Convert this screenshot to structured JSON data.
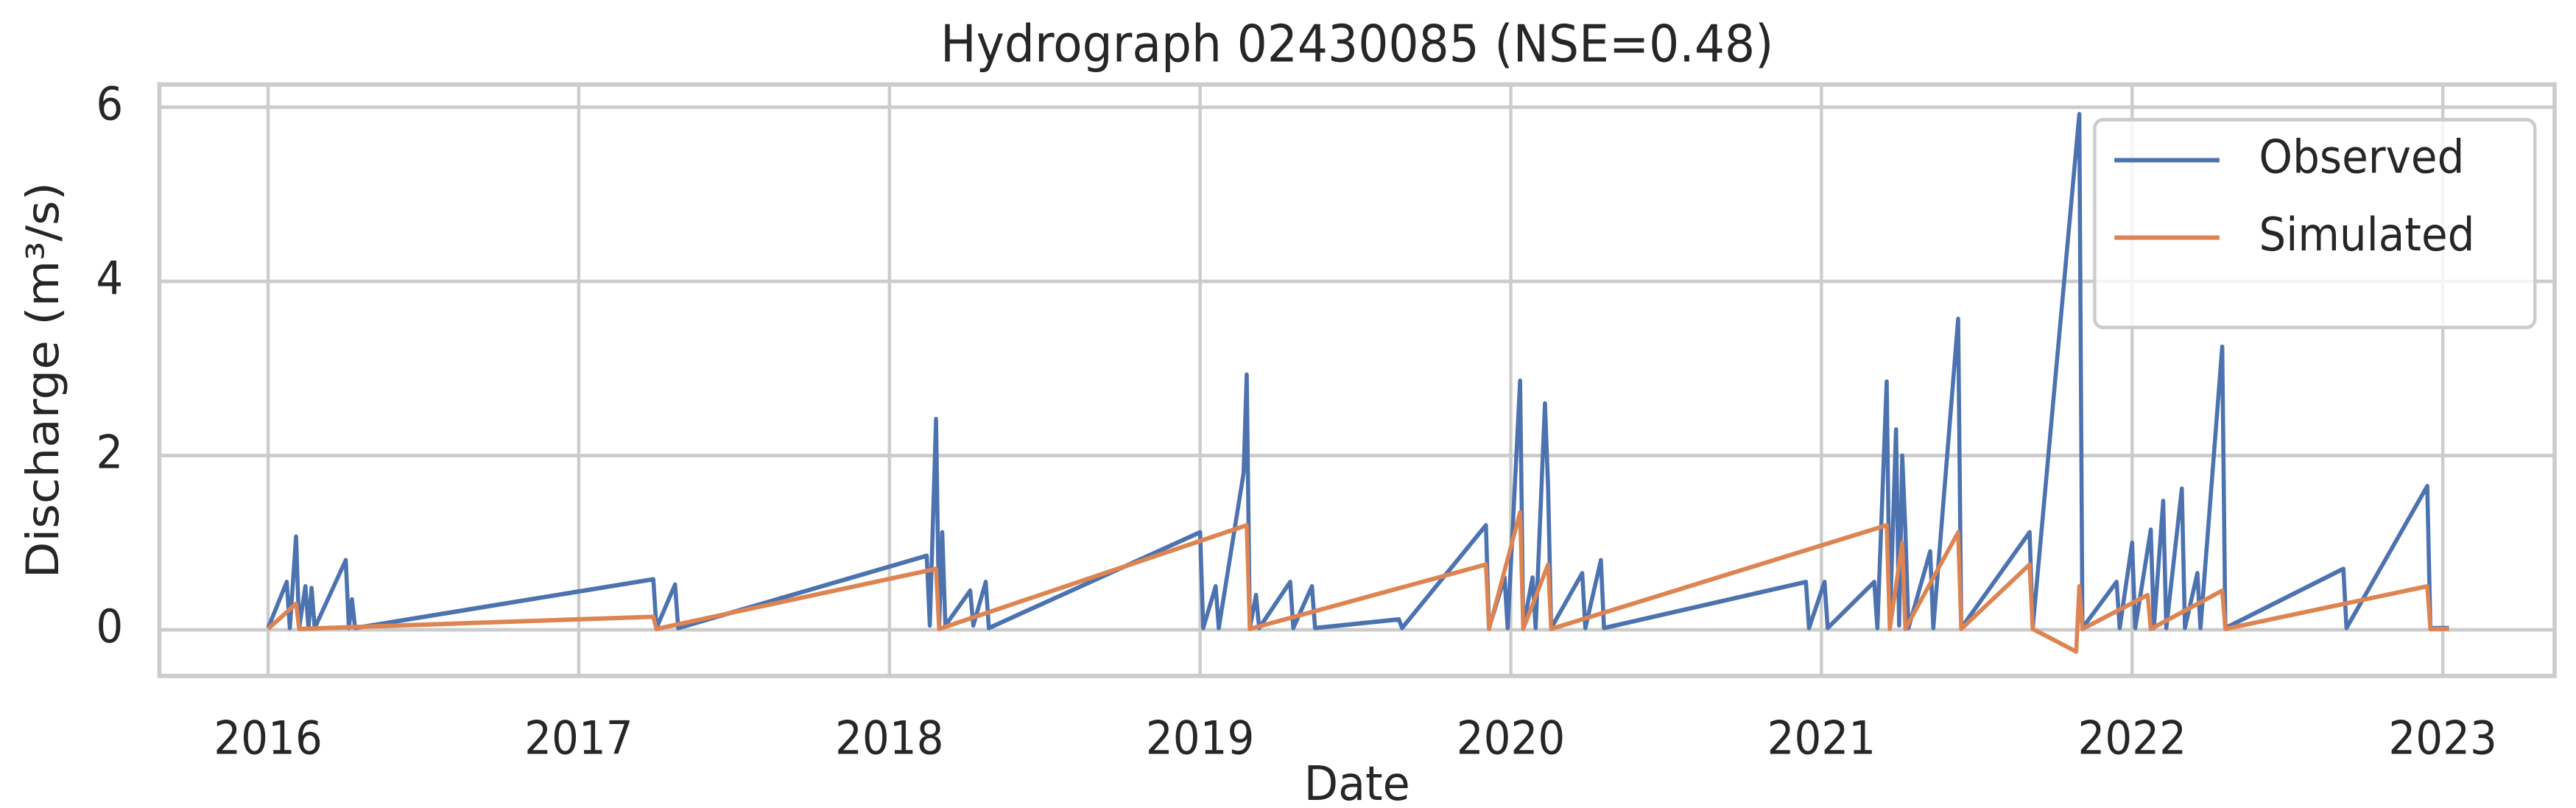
{
  "chart_data": {
    "type": "line",
    "title": "Hydrograph 02430085  (NSE=0.48)",
    "x_label": "Date",
    "y_label": "Discharge (m³/s)",
    "xlim": [
      2015.65,
      2023.36
    ],
    "ylim": [
      -0.53,
      6.26
    ],
    "xticks": [
      2016,
      2017,
      2018,
      2019,
      2020,
      2021,
      2022,
      2023
    ],
    "yticks": [
      0,
      2,
      4,
      6
    ],
    "grid": true,
    "legend": "upper right",
    "series": [
      {
        "name": "Observed",
        "color": "#4c72b0",
        "x": [
          2016.0,
          2016.06,
          2016.07,
          2016.09,
          2016.1,
          2016.12,
          2016.13,
          2016.14,
          2016.15,
          2016.25,
          2016.26,
          2016.27,
          2016.28,
          2017.24,
          2017.25,
          2017.31,
          2017.32,
          2018.12,
          2018.13,
          2018.15,
          2018.16,
          2018.17,
          2018.18,
          2018.26,
          2018.27,
          2018.31,
          2018.32,
          2019.0,
          2019.01,
          2019.05,
          2019.06,
          2019.14,
          2019.15,
          2019.16,
          2019.18,
          2019.19,
          2019.29,
          2019.3,
          2019.36,
          2019.37,
          2019.64,
          2019.65,
          2019.92,
          2019.93,
          2019.98,
          2019.99,
          2020.03,
          2020.04,
          2020.07,
          2020.08,
          2020.11,
          2020.12,
          2020.13,
          2020.23,
          2020.24,
          2020.29,
          2020.3,
          2020.95,
          2020.96,
          2021.01,
          2021.02,
          2021.17,
          2021.18,
          2021.21,
          2021.22,
          2021.24,
          2021.25,
          2021.26,
          2021.27,
          2021.28,
          2021.35,
          2021.36,
          2021.44,
          2021.45,
          2021.67,
          2021.68,
          2021.83,
          2021.84,
          2021.95,
          2021.96,
          2022.0,
          2022.01,
          2022.06,
          2022.07,
          2022.1,
          2022.11,
          2022.16,
          2022.17,
          2022.21,
          2022.22,
          2022.29,
          2022.3,
          2022.68,
          2022.69,
          2022.95,
          2022.96,
          2023.02
        ],
        "values": [
          0.02,
          0.55,
          0.02,
          1.07,
          0.02,
          0.5,
          0.02,
          0.48,
          0.02,
          0.8,
          0.02,
          0.35,
          0.02,
          0.58,
          0.02,
          0.52,
          0.02,
          0.85,
          0.05,
          2.42,
          0.05,
          1.12,
          0.05,
          0.45,
          0.05,
          0.55,
          0.02,
          1.12,
          0.02,
          0.5,
          0.02,
          1.8,
          2.93,
          0.02,
          0.4,
          0.02,
          0.55,
          0.02,
          0.5,
          0.02,
          0.12,
          0.02,
          1.2,
          0.02,
          0.6,
          0.02,
          2.86,
          0.02,
          0.6,
          0.02,
          2.6,
          1.65,
          0.02,
          0.65,
          0.02,
          0.8,
          0.02,
          0.55,
          0.02,
          0.55,
          0.02,
          0.55,
          0.02,
          2.85,
          0.05,
          2.3,
          0.05,
          2.0,
          1.15,
          0.02,
          0.9,
          0.02,
          3.57,
          0.02,
          1.12,
          0.02,
          5.92,
          0.02,
          0.55,
          0.02,
          1.0,
          0.02,
          1.15,
          0.02,
          1.48,
          0.02,
          1.62,
          0.02,
          0.65,
          0.02,
          3.25,
          0.02,
          0.7,
          0.02,
          1.65,
          0.02,
          0.02
        ]
      },
      {
        "name": "Simulated",
        "color": "#dd8452",
        "x": [
          2016.0,
          2016.09,
          2016.1,
          2017.24,
          2017.25,
          2018.15,
          2018.16,
          2019.15,
          2019.16,
          2019.92,
          2019.93,
          2020.03,
          2020.04,
          2020.12,
          2020.13,
          2021.21,
          2021.22,
          2021.26,
          2021.27,
          2021.44,
          2021.45,
          2021.67,
          2021.68,
          2021.82,
          2021.83,
          2021.84,
          2022.05,
          2022.06,
          2022.29,
          2022.3,
          2022.95,
          2022.96,
          2023.02
        ],
        "values": [
          0.01,
          0.3,
          0.01,
          0.15,
          0.01,
          0.7,
          0.01,
          1.2,
          0.01,
          0.75,
          0.01,
          1.35,
          0.01,
          0.75,
          0.01,
          1.2,
          0.01,
          1.0,
          0.01,
          1.12,
          0.01,
          0.75,
          0.01,
          -0.25,
          0.5,
          0.01,
          0.4,
          0.01,
          0.45,
          0.01,
          0.5,
          0.01,
          0.01
        ]
      }
    ]
  }
}
